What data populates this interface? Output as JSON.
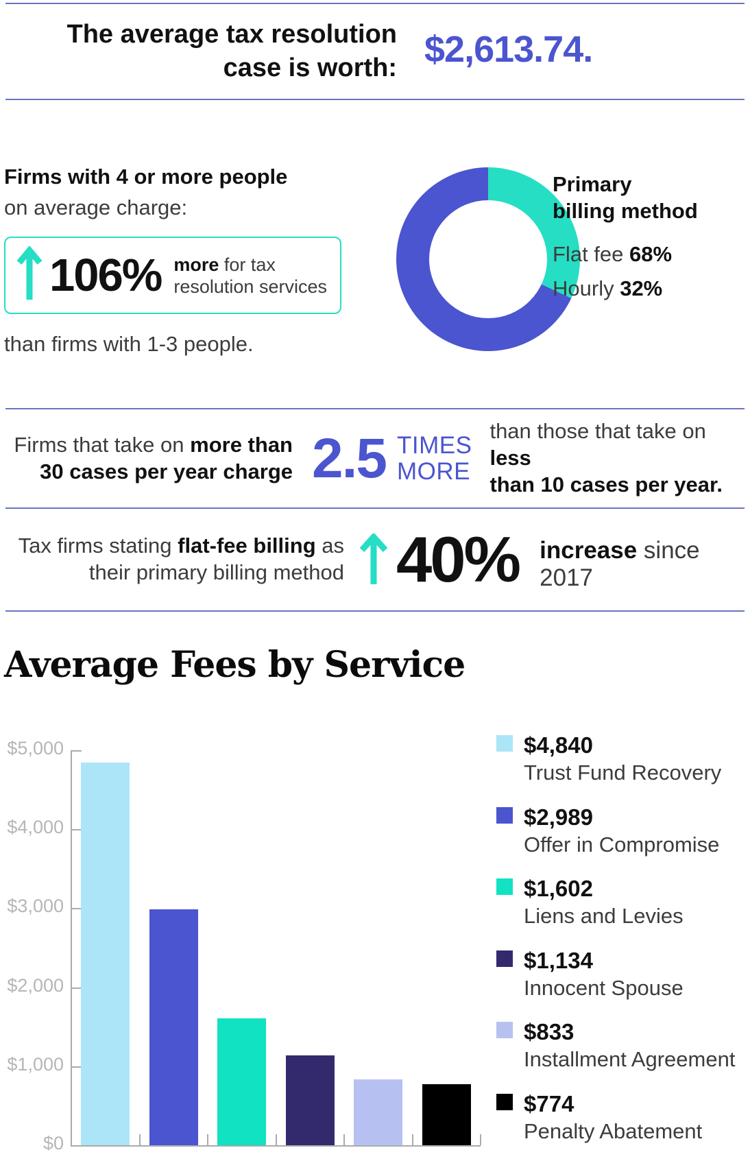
{
  "colors": {
    "accent_blue": "#4b55cf",
    "divider": "#6a73c6",
    "accent_teal": "#26dec4",
    "text_dark": "#111111",
    "axis_gray": "#a9abad",
    "label_gray": "#b4b6b8"
  },
  "header": {
    "title_line1": "The average tax resolution",
    "title_line2": "case is worth:",
    "amount": "$2,613.74."
  },
  "firm_size_section": {
    "heading_bold": "Firms with 4 or more people",
    "heading_rest": "on average charge:",
    "stat": {
      "percent": "106%",
      "bold_word": "more",
      "tail": " for tax",
      "line2": "resolution services"
    },
    "footnote": "than firms with 1-3 people.",
    "donut_labels": {
      "title_line1": "Primary",
      "title_line2": "billing method",
      "flat_label": "Flat fee ",
      "flat_value": "68%",
      "hourly_label": "Hourly ",
      "hourly_value": "32%"
    }
  },
  "cases_section": {
    "left_regular": "Firms that take on ",
    "left_bold1": "more than",
    "left_bold2": "30 cases per year charge",
    "multiplier": "2.5",
    "times_line1": "TIMES",
    "times_line2": "MORE",
    "right_regular": "than those that take on ",
    "right_bold1": "less",
    "right_bold2": "than 10 cases per year."
  },
  "billing_increase_section": {
    "left_regular": "Tax firms stating ",
    "left_bold": "flat-fee billing",
    "left_tail": " as",
    "left_line2": "their primary billing method",
    "percent": "40%",
    "suffix_bold": "increase",
    "suffix_regular": " since 2017"
  },
  "fees_section_title": "Average Fees by Service",
  "chart_data": [
    {
      "type": "pie",
      "donut": true,
      "title": "Primary billing method",
      "labels": [
        "Flat fee",
        "Hourly"
      ],
      "values": [
        68,
        32
      ],
      "colors": [
        "#4b55cf",
        "#26dec4"
      ],
      "legend_position": "right",
      "start": "Hourly slice starts at 12 o'clock clockwise"
    },
    {
      "type": "bar",
      "title": "Average Fees by Service",
      "categories": [
        "Trust Fund Recovery",
        "Offer in Compromise",
        "Liens and Levies",
        "Innocent Spouse",
        "Installment Agreement",
        "Penalty Abatement"
      ],
      "values": [
        4840,
        2989,
        1602,
        1134,
        833,
        774
      ],
      "value_labels": [
        "$4,840",
        "$2,989",
        "$1,602",
        "$1,134",
        "$833",
        "$774"
      ],
      "bar_colors": [
        "#ace4f8",
        "#4b55cf",
        "#10e2c2",
        "#332a6e",
        "#b7c1f1",
        "#000000"
      ],
      "xlabel": "",
      "ylabel": "",
      "ylim": [
        0,
        5000
      ],
      "ytick_labels": [
        "$0",
        "$1,000",
        "$2,000",
        "$3,000",
        "$4,000",
        "$5,000"
      ],
      "grid": false,
      "legend_position": "right"
    }
  ]
}
